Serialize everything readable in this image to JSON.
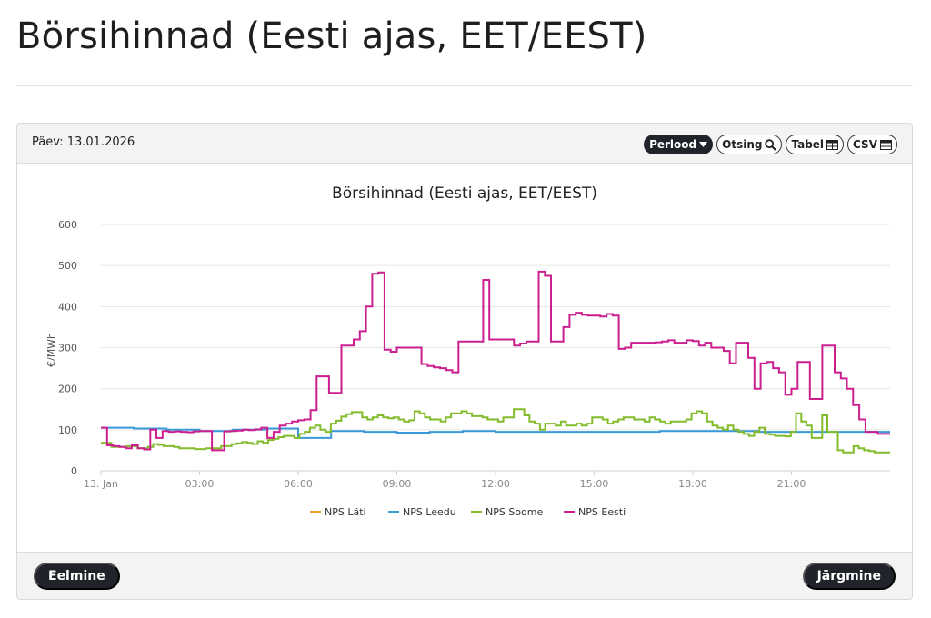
{
  "page": {
    "title": "Börsihinnad (Eesti ajas, EET/EEST)"
  },
  "card": {
    "day_label": "Päev: 13.01.2026",
    "toolbar": {
      "period": "Perlood",
      "search": "Otsing",
      "table": "Tabel",
      "csv": "CSV"
    },
    "footer": {
      "prev": "Eelmine",
      "next": "Järgmine"
    }
  },
  "chart_data": {
    "type": "line",
    "title": "Börsihinnad (Eesti ajas, EET/EEST)",
    "xlabel": "",
    "ylabel": "€/MWh",
    "ylim": [
      0,
      600
    ],
    "yticks": [
      "0",
      "100",
      "200",
      "300",
      "400",
      "500",
      "600"
    ],
    "xticks": [
      "13. Jan",
      "03:00",
      "06:00",
      "09:00",
      "12:00",
      "15:00",
      "18:00",
      "21:00"
    ],
    "xlim": [
      0,
      24
    ],
    "step": true,
    "interval_hours": 0.25,
    "grid": true,
    "legend_position": "bottom",
    "colors": {
      "NPS Läti": "#f0a42e",
      "NPS Leedu": "#3a9ad9",
      "NPS Soome": "#82bc2c",
      "NPS Eesti": "#cc1f8f"
    },
    "series": [
      {
        "name": "NPS Läti",
        "values": []
      },
      {
        "name": "NPS Leedu",
        "values": [
          105,
          103,
          100,
          97,
          100,
          103,
          80,
          97,
          95,
          93,
          95,
          97,
          95,
          95,
          95,
          95,
          95,
          97,
          97,
          97,
          95,
          95,
          95,
          95
        ]
      },
      {
        "name": "NPS Soome",
        "values": [
          68,
          68,
          58,
          58,
          58,
          60,
          60,
          55,
          55,
          58,
          65,
          63,
          60,
          60,
          58,
          55,
          55,
          55,
          53,
          53,
          55,
          55,
          55,
          60,
          60,
          65,
          67,
          70,
          68,
          65,
          72,
          68,
          75,
          78,
          82,
          85,
          85,
          80,
          90,
          95,
          105,
          110,
          100,
          95,
          115,
          122,
          132,
          138,
          143,
          143,
          130,
          125,
          130,
          135,
          130,
          128,
          130,
          125,
          120,
          123,
          145,
          140,
          130,
          125,
          125,
          120,
          130,
          140,
          140,
          145,
          140,
          133,
          133,
          130,
          125,
          125,
          120,
          130,
          130,
          150,
          150,
          135,
          120,
          115,
          100,
          115,
          115,
          110,
          120,
          110,
          110,
          115,
          110,
          115,
          130,
          130,
          125,
          115,
          120,
          125,
          130,
          130,
          125,
          125,
          120,
          130,
          125,
          120,
          115,
          120,
          120,
          120,
          125,
          140,
          145,
          140,
          120,
          110,
          105,
          100,
          110,
          100,
          95,
          90,
          85,
          95,
          105,
          90,
          88,
          85,
          85,
          84,
          95,
          140,
          120,
          110,
          80,
          80,
          135,
          95,
          95,
          50,
          45,
          45,
          60,
          55,
          50,
          48,
          45,
          45,
          45
        ]
      },
      {
        "name": "NPS Eesti",
        "values": [
          105,
          62,
          60,
          58,
          55,
          62,
          55,
          52,
          100,
          80,
          97,
          95,
          96,
          95,
          94,
          96,
          97,
          97,
          50,
          50,
          96,
          97,
          98,
          100,
          99,
          101,
          105,
          80,
          95,
          110,
          115,
          120,
          123,
          125,
          148,
          230,
          230,
          190,
          190,
          305,
          305,
          320,
          340,
          400,
          480,
          483,
          295,
          290,
          300,
          300,
          300,
          300,
          260,
          255,
          252,
          250,
          245,
          240,
          315,
          315,
          315,
          315,
          465,
          320,
          320,
          320,
          320,
          305,
          310,
          315,
          315,
          485,
          475,
          315,
          315,
          350,
          380,
          385,
          380,
          378,
          378,
          376,
          382,
          378,
          297,
          300,
          312,
          312,
          312,
          312,
          313,
          315,
          318,
          312,
          312,
          318,
          316,
          305,
          312,
          300,
          300,
          292,
          262,
          312,
          312,
          275,
          200,
          262,
          265,
          250,
          240,
          185,
          200,
          265,
          265,
          175,
          175,
          305,
          305,
          240,
          225,
          200,
          160,
          125,
          95,
          95,
          90,
          90
        ]
      }
    ]
  }
}
